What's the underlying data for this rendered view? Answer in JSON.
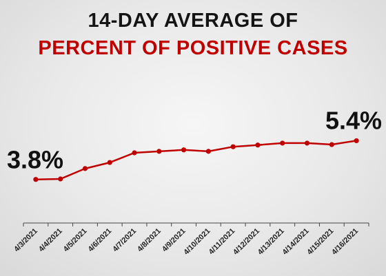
{
  "title": {
    "line1": "14-DAY AVERAGE OF",
    "line2": "PERCENT OF POSITIVE CASES"
  },
  "colors": {
    "title_line1": "#141414",
    "title_line2": "#c00000",
    "series": "#c00000",
    "axis": "#444444"
  },
  "chart_data": {
    "type": "line",
    "title": "14-DAY AVERAGE OF PERCENT OF POSITIVE CASES",
    "categories": [
      "4/3/2021",
      "4/4/2021",
      "4/5/2021",
      "4/6/2021",
      "4/7/2021",
      "4/8/2021",
      "4/9/2021",
      "4/10/2021",
      "4/11/2021",
      "4/12/2021",
      "4/13/2021",
      "4/14/2021",
      "4/15/2021",
      "4/16/2021"
    ],
    "series": [
      {
        "values": [
          3.8,
          3.82,
          4.25,
          4.5,
          4.9,
          4.96,
          5.02,
          4.96,
          5.15,
          5.22,
          5.3,
          5.3,
          5.24,
          5.4
        ]
      }
    ],
    "ylim": [
      2.0,
      7.8
    ],
    "grid": false,
    "legend": "none",
    "annotations": [
      {
        "text": "3.8%",
        "category": "4/3/2021"
      },
      {
        "text": "5.4%",
        "category": "4/16/2021"
      }
    ]
  }
}
